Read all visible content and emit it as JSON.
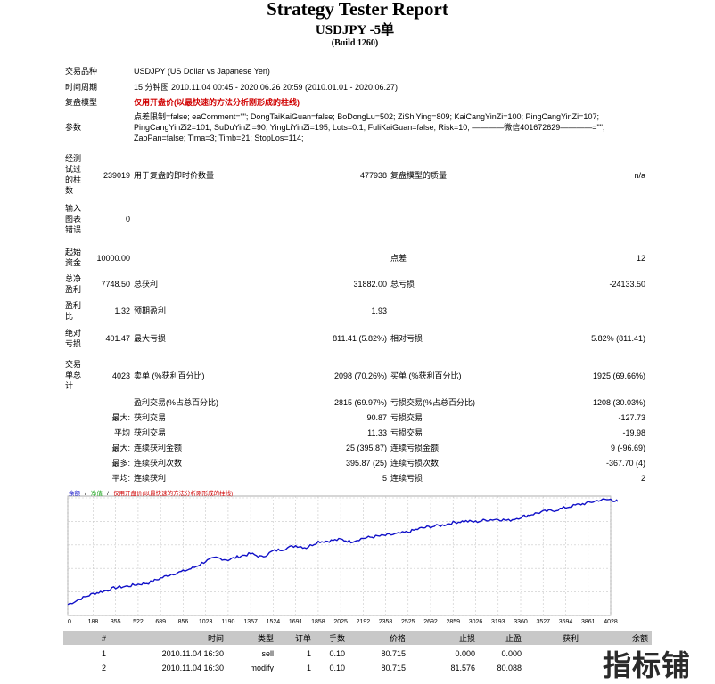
{
  "report": {
    "title": "Strategy Tester Report",
    "subtitle": "USDJPY -5单",
    "build": "(Build 1260)"
  },
  "info": {
    "symbol_label": "交易品种",
    "symbol_value": "USDJPY (US Dollar vs Japanese Yen)",
    "period_label": "时间周期",
    "period_value": "15 分钟图 2010.11.04 00:45 - 2020.06.26 20:59 (2010.01.01 - 2020.06.27)",
    "model_label": "复盘模型",
    "model_value": "仅用开盘价(以最快速的方法分析刚形成的柱线)",
    "params_label": "参数",
    "params_value": "点差限制=false; eaComment=\"\"; DongTaiKaiGuan=false; BoDongLu=502; ZiShiYing=809; KaiCangYinZi=100; PingCangYinZi=107; PingCangYinZi2=101; SuDuYinZi=90; YingLiYinZi=195; Lots=0.1; FuliKaiGuan=false; Risk=10; ————微信401672629————=\"\"; ZaoPan=false; Tima=3; Timb=21; StopLos=114;"
  },
  "bars": {
    "label": "经测试过的柱数",
    "value": "239019",
    "ticks_label": "用于复盘的即时价数量",
    "ticks_value": "477938",
    "quality_label": "复盘模型的质量",
    "quality_value": "n/a"
  },
  "errors": {
    "label": "输入图表错误",
    "value": "0"
  },
  "summary": {
    "deposit_label": "起始资金",
    "deposit_value": "10000.00",
    "spread_label": "点差",
    "spread_value": "12",
    "net_label": "总净盈利",
    "net_value": "7748.50",
    "gross_profit_label": "总获利",
    "gross_profit_value": "31882.00",
    "gross_loss_label": "总亏损",
    "gross_loss_value": "-24133.50",
    "pf_label": "盈利比",
    "pf_value": "1.32",
    "expected_label": "预期盈利",
    "expected_value": "1.93",
    "abs_dd_label": "绝对亏损",
    "abs_dd_value": "401.47",
    "max_dd_label": "最大亏损",
    "max_dd_value": "811.41 (5.82%)",
    "rel_dd_label": "相对亏损",
    "rel_dd_value": "5.82% (811.41)",
    "trades_label": "交易单总计",
    "trades_value": "4023",
    "short_label": "卖单 (%获利百分比)",
    "short_value": "2098 (70.26%)",
    "long_label": "买单 (%获利百分比)",
    "long_value": "1925 (69.66%)",
    "profit_trades_label": "盈利交易(%占总百分比)",
    "profit_trades_value": "2815 (69.97%)",
    "loss_trades_label": "亏损交易(%占总百分比)",
    "loss_trades_value": "1208 (30.03%)",
    "largest_prefix": "最大:",
    "largest_profit_label": "获利交易",
    "largest_profit_value": "90.87",
    "largest_loss_label": "亏损交易",
    "largest_loss_value": "-127.73",
    "average_prefix": "平均",
    "avg_profit_label": "获利交易",
    "avg_profit_value": "11.33",
    "avg_loss_label": "亏损交易",
    "avg_loss_value": "-19.98",
    "max_prefix": "最大:",
    "cons_wins_label": "连续获利金额",
    "cons_wins_value": "25 (395.87)",
    "cons_losses_label": "连续亏损金额",
    "cons_losses_value": "9 (-96.69)",
    "most_prefix": "最多:",
    "cons_profit_label": "连续获利次数",
    "cons_profit_value": "395.87 (25)",
    "cons_loss_label": "连续亏损次数",
    "cons_loss_value": "-367.70 (4)",
    "avg2_prefix": "平均:",
    "avg_cons_wins_label": "连续获利",
    "avg_cons_wins_value": "5",
    "avg_cons_losses_label": "连续亏损",
    "avg_cons_losses_value": "2"
  },
  "chart_data": {
    "type": "line",
    "legend": [
      {
        "label": "余额",
        "color": "#1010c8"
      },
      {
        "label": "净值",
        "color": "#10a010"
      },
      {
        "label": "仅用开盘价(以最快速的方法分析刚形成的柱线)",
        "color": "#d00000"
      }
    ],
    "legend_sep": "/",
    "x_ticks": [
      "0",
      "188",
      "355",
      "522",
      "689",
      "856",
      "1023",
      "1190",
      "1357",
      "1524",
      "1691",
      "1858",
      "2025",
      "2192",
      "2358",
      "2525",
      "2692",
      "2859",
      "3026",
      "3193",
      "3360",
      "3527",
      "3694",
      "3861",
      "4028"
    ],
    "y_ticks": [
      "17870",
      "16135",
      "14401",
      "12666",
      "10932",
      "9197"
    ],
    "ylim": [
      9197,
      17870
    ],
    "xlim": [
      0,
      4028
    ],
    "series": [
      {
        "color": "#1010c8",
        "x": [
          0,
          100,
          188,
          270,
          355,
          440,
          522,
          600,
          689,
          770,
          856,
          940,
          1023,
          1100,
          1190,
          1270,
          1357,
          1440,
          1524,
          1600,
          1691,
          1770,
          1858,
          1940,
          2025,
          2100,
          2192,
          2270,
          2358,
          2440,
          2525,
          2610,
          2692,
          2780,
          2859,
          2940,
          3026,
          3110,
          3193,
          3270,
          3360,
          3440,
          3527,
          3610,
          3694,
          3780,
          3861,
          3940,
          4028,
          4080
        ],
        "y": [
          10000,
          10450,
          10800,
          11000,
          11250,
          11350,
          11500,
          11600,
          11950,
          12250,
          12450,
          12750,
          13200,
          13450,
          13300,
          13550,
          13750,
          13500,
          13950,
          14100,
          14350,
          14200,
          14650,
          14700,
          14800,
          14650,
          14900,
          15000,
          15100,
          15200,
          15350,
          15600,
          15750,
          15850,
          16050,
          16150,
          16100,
          16250,
          16300,
          16200,
          16450,
          16650,
          16850,
          16950,
          17150,
          17350,
          17500,
          17700,
          17750,
          17600
        ]
      }
    ]
  },
  "trades_table": {
    "headers": [
      "#",
      "时间",
      "类型",
      "订单",
      "手数",
      "价格",
      "止损",
      "止盈",
      "获利",
      "余额"
    ],
    "rows": [
      [
        "1",
        "2010.11.04 16:30",
        "sell",
        "1",
        "0.10",
        "80.715",
        "0.000",
        "0.000",
        "",
        ""
      ],
      [
        "2",
        "2010.11.04 16:30",
        "modify",
        "1",
        "0.10",
        "80.715",
        "81.576",
        "80.088",
        "",
        ""
      ]
    ]
  },
  "watermark": "指标铺"
}
